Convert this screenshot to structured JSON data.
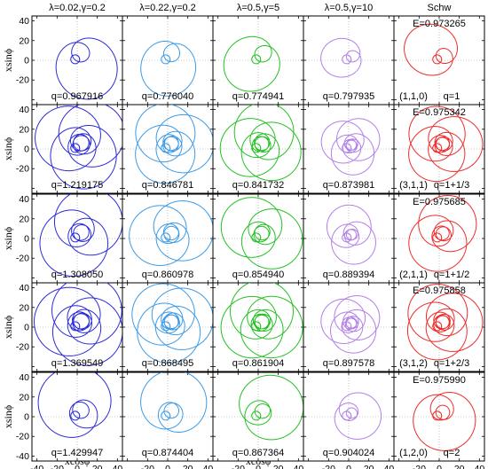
{
  "chart_data": {
    "type": "line",
    "description_of_layout": "5x5 grid of orbit panels",
    "column_headers": [
      "λ=0.02,γ=0.2",
      "λ=0.22,γ=0.2",
      "λ=0.5,γ=5",
      "λ=0.5,γ=10",
      "Schw"
    ],
    "column_colors": [
      "#2a2ad8",
      "#3a9ae8",
      "#22c022",
      "#b27ee8",
      "#ee2a2a"
    ],
    "xlabel": "xcosϕ",
    "ylabel": "xsinϕ",
    "xlim": [
      -45,
      45
    ],
    "ylim": [
      -45,
      45
    ],
    "xticks": [
      -40,
      -20,
      0,
      20,
      40
    ],
    "yticks": [
      -40,
      -20,
      0,
      20,
      40
    ],
    "x_tick_labels": [
      "-40",
      "-20",
      "0",
      "20",
      "40"
    ],
    "y_tick_labels": [
      "40",
      "20",
      "0",
      "-20",
      "-40"
    ],
    "rows": [
      {
        "q_values": [
          "q=0.967916",
          "q=0.776040",
          "q=0.774941",
          "q=0.797935",
          "q=1"
        ],
        "schw_energy": "E=0.973265",
        "schw_triple": "(1,1,0)",
        "z": 1,
        "w": 1,
        "v": 0
      },
      {
        "q_values": [
          "q=1.219175",
          "q=0.846781",
          "q=0.841732",
          "q=0.873981",
          "q=1+1/3"
        ],
        "schw_energy": "E=0.975342",
        "schw_triple": "(3,1,1)",
        "z": 3,
        "w": 1,
        "v": 1
      },
      {
        "q_values": [
          "q=1.308050",
          "q=0.860978",
          "q=0.854940",
          "q=0.889394",
          "q=1+1/2"
        ],
        "schw_energy": "E=0.975685",
        "schw_triple": "(2,1,1)",
        "z": 2,
        "w": 1,
        "v": 1
      },
      {
        "q_values": [
          "q=1.369549",
          "q=0.868495",
          "q=0.861904",
          "q=0.897578",
          "q=1+2/3"
        ],
        "schw_energy": "E=0.975858",
        "schw_triple": "(3,1,2)",
        "z": 3,
        "w": 1,
        "v": 2
      },
      {
        "q_values": [
          "q=1.429947",
          "q=0.874404",
          "q=0.867364",
          "q=0.904024",
          "q=2"
        ],
        "schw_energy": "E=0.975990",
        "schw_triple": "(1,2,0)",
        "z": 1,
        "w": 2,
        "v": 0
      }
    ],
    "orbit_scale_per_column": [
      1.0,
      0.9,
      0.9,
      0.65,
      0.85
    ]
  }
}
